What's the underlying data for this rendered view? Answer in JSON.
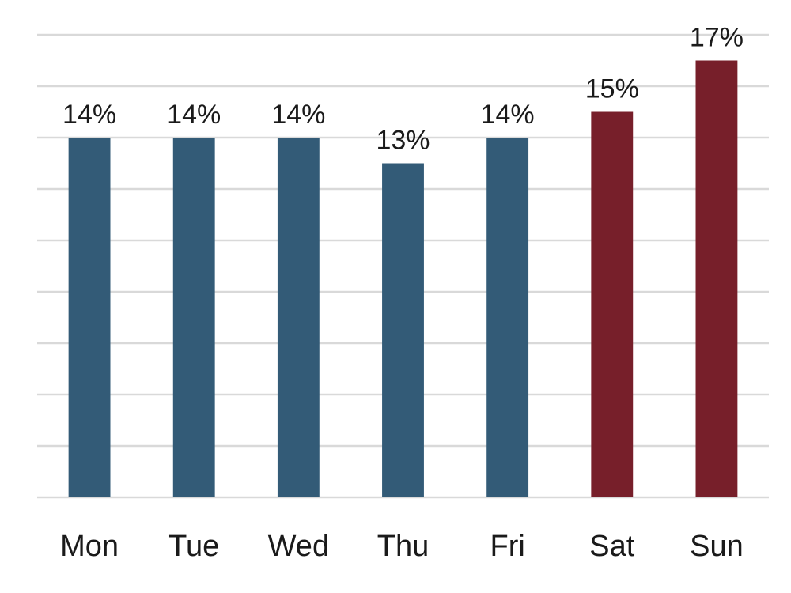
{
  "chart_data": {
    "type": "bar",
    "categories": [
      "Mon",
      "Tue",
      "Wed",
      "Thu",
      "Fri",
      "Sat",
      "Sun"
    ],
    "values": [
      14,
      14,
      14,
      13,
      14,
      15,
      17
    ],
    "value_labels": [
      "14%",
      "14%",
      "14%",
      "13%",
      "14%",
      "15%",
      "17%"
    ],
    "bar_colors": [
      "#335b77",
      "#335b77",
      "#335b77",
      "#335b77",
      "#335b77",
      "#771f2a",
      "#771f2a"
    ],
    "title": "",
    "xlabel": "",
    "ylabel": "",
    "ylim": [
      0,
      18
    ],
    "grid_step": 2,
    "grid": true,
    "legend": false
  }
}
